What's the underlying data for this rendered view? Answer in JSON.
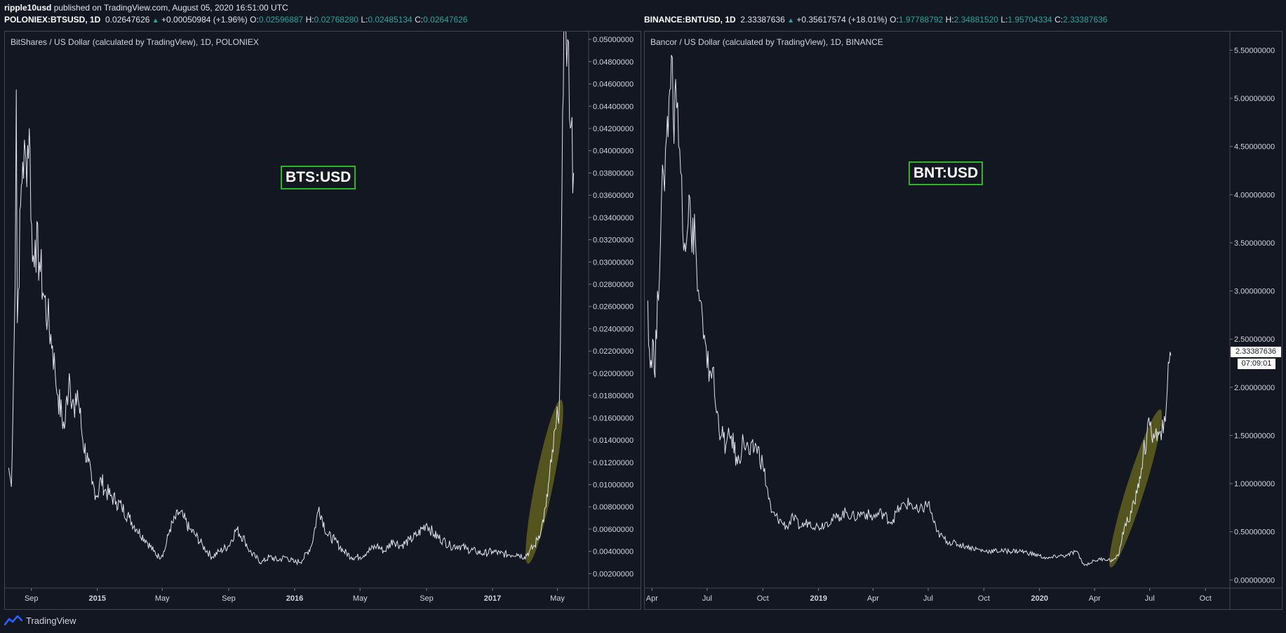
{
  "header": {
    "publisher": "ripple10usd",
    "published_text": "published on TradingView.com, August 05, 2020 16:51:00 UTC"
  },
  "left": {
    "symbol": "POLONIEX:BTSUSD, 1D",
    "last": "0.02647626",
    "change": "+0.00050984 (+1.96%)",
    "o": "0.02596887",
    "h": "0.02768280",
    "l": "0.02485134",
    "c": "0.02647626",
    "title": "BitShares / US Dollar (calculated by TradingView), 1D, POLONIEX",
    "annotation": "BTS:USD"
  },
  "right": {
    "symbol": "BINANCE:BNTUSD, 1D",
    "last": "2.33387636",
    "change": "+0.35617574 (+18.01%)",
    "o": "1.97788792",
    "h": "2.34881520",
    "l": "1.95704334",
    "c": "2.33387636",
    "title": "Bancor / US Dollar (calculated by TradingView), 1D, BINANCE",
    "annotation": "BNT:USD",
    "price_tag": "2.33387636",
    "countdown": "07:09:01"
  },
  "labels": {
    "o": "O:",
    "h": "H:",
    "l": "L:",
    "c": "C:"
  },
  "footer": {
    "brand": "TradingView"
  },
  "colors": {
    "background": "#131722",
    "line": "#e0e3eb",
    "highlight": "#6b6b1e",
    "annotation_border": "#2ab52a",
    "up": "#26a69a"
  },
  "chart_data": [
    {
      "type": "line",
      "title": "BitShares / US Dollar (calculated by TradingView), 1D, POLONIEX",
      "x_tick_labels": [
        "Sep",
        "2015",
        "May",
        "Sep",
        "2016",
        "May",
        "Sep",
        "2017",
        "May"
      ],
      "ylim": [
        0.0007,
        0.0507
      ],
      "y_tick_labels": [
        "0.05000000",
        "0.04800000",
        "0.04600000",
        "0.04400000",
        "0.04200000",
        "0.04000000",
        "0.03800000",
        "0.03600000",
        "0.03400000",
        "0.03200000",
        "0.03000000",
        "0.02800000",
        "0.02600000",
        "0.02400000",
        "0.02200000",
        "0.02000000",
        "0.01800000",
        "0.01600000",
        "0.01400000",
        "0.01200000",
        "0.01000000",
        "0.00800000",
        "0.00600000",
        "0.00400000",
        "0.00200000"
      ],
      "series": [
        {
          "x": [
            "2014-07-21",
            "2014-07-26",
            "2014-08-02",
            "2014-08-04",
            "2014-08-06",
            "2014-08-08",
            "2014-08-12",
            "2014-08-16",
            "2014-08-22",
            "2014-08-28",
            "2014-09-03",
            "2014-09-08",
            "2014-09-16",
            "2014-09-24",
            "2014-10-01",
            "2014-10-10",
            "2014-10-15",
            "2014-10-20",
            "2014-11-01",
            "2014-11-10",
            "2014-11-20",
            "2014-11-25",
            "2014-12-05",
            "2014-12-15",
            "2014-12-22",
            "2015-01-01",
            "2015-01-08",
            "2015-01-15",
            "2015-01-25",
            "2015-02-05",
            "2015-02-15",
            "2015-03-01",
            "2015-03-15",
            "2015-04-01",
            "2015-04-15",
            "2015-04-25",
            "2015-05-05",
            "2015-05-15",
            "2015-06-01",
            "2015-06-10",
            "2015-06-20",
            "2015-07-01",
            "2015-07-15",
            "2015-08-01",
            "2015-08-15",
            "2015-09-01",
            "2015-09-15",
            "2015-10-01",
            "2015-10-10",
            "2015-10-20",
            "2015-11-01",
            "2015-11-15",
            "2015-12-01",
            "2015-12-15",
            "2016-01-01",
            "2016-01-15",
            "2016-02-01",
            "2016-02-15",
            "2016-03-01",
            "2016-03-15",
            "2016-04-01",
            "2016-04-15",
            "2016-05-01",
            "2016-05-15",
            "2016-06-01",
            "2016-06-15",
            "2016-07-01",
            "2016-07-15",
            "2016-08-01",
            "2016-08-15",
            "2016-09-01",
            "2016-09-15",
            "2016-10-01",
            "2016-10-15",
            "2016-11-01",
            "2016-11-15",
            "2016-12-01",
            "2016-12-15",
            "2017-01-01",
            "2017-01-15",
            "2017-02-01",
            "2017-02-15",
            "2017-03-01",
            "2017-03-10",
            "2017-03-20",
            "2017-04-01",
            "2017-04-10",
            "2017-04-20",
            "2017-04-28",
            "2017-05-02",
            "2017-05-05",
            "2017-05-08",
            "2017-05-12",
            "2017-05-15",
            "2017-05-20",
            "2017-05-25",
            "2017-05-31"
          ],
          "values": [
            0.0115,
            0.0098,
            0.028,
            0.0455,
            0.0245,
            0.0275,
            0.035,
            0.039,
            0.039,
            0.042,
            0.03,
            0.032,
            0.03,
            0.027,
            0.025,
            0.0225,
            0.02,
            0.018,
            0.015,
            0.02,
            0.016,
            0.0185,
            0.014,
            0.012,
            0.01,
            0.009,
            0.0105,
            0.0095,
            0.009,
            0.0085,
            0.008,
            0.007,
            0.006,
            0.005,
            0.004,
            0.0035,
            0.004,
            0.006,
            0.0075,
            0.007,
            0.006,
            0.0055,
            0.0045,
            0.0035,
            0.004,
            0.0045,
            0.006,
            0.005,
            0.004,
            0.0035,
            0.003,
            0.0035,
            0.0032,
            0.0035,
            0.003,
            0.0032,
            0.0045,
            0.008,
            0.0055,
            0.005,
            0.004,
            0.0035,
            0.0035,
            0.004,
            0.0045,
            0.004,
            0.005,
            0.0045,
            0.005,
            0.0055,
            0.0065,
            0.0055,
            0.005,
            0.0045,
            0.0045,
            0.0042,
            0.004,
            0.0038,
            0.004,
            0.0038,
            0.0037,
            0.0038,
            0.0035,
            0.004,
            0.0045,
            0.006,
            0.008,
            0.012,
            0.015,
            0.016,
            0.018,
            0.03,
            0.045,
            0.055,
            0.05,
            0.042,
            0.038
          ]
        }
      ]
    },
    {
      "type": "line",
      "title": "Bancor / US Dollar (calculated by TradingView), 1D, BINANCE",
      "x_tick_labels": [
        "Apr",
        "Jul",
        "Oct",
        "2019",
        "Apr",
        "Jul",
        "Oct",
        "2020",
        "Apr",
        "Jul",
        "Oct"
      ],
      "ylim": [
        -0.085,
        5.693
      ],
      "y_tick_labels": [
        "5.50000000",
        "5.00000000",
        "4.50000000",
        "4.00000000",
        "3.50000000",
        "3.00000000",
        "2.50000000",
        "2.00000000",
        "1.50000000",
        "1.00000000",
        "0.50000000",
        "0.00000000"
      ],
      "series": [
        {
          "x": [
            "2018-03-25",
            "2018-03-29",
            "2018-04-02",
            "2018-04-06",
            "2018-04-10",
            "2018-04-15",
            "2018-04-20",
            "2018-04-25",
            "2018-04-29",
            "2018-05-03",
            "2018-05-06",
            "2018-05-10",
            "2018-05-15",
            "2018-05-20",
            "2018-05-25",
            "2018-06-01",
            "2018-06-06",
            "2018-06-10",
            "2018-06-15",
            "2018-06-20",
            "2018-06-25",
            "2018-07-01",
            "2018-07-10",
            "2018-07-15",
            "2018-07-25",
            "2018-08-01",
            "2018-08-10",
            "2018-08-20",
            "2018-08-30",
            "2018-09-10",
            "2018-09-20",
            "2018-10-01",
            "2018-10-15",
            "2018-11-01",
            "2018-11-10",
            "2018-11-20",
            "2018-12-01",
            "2018-12-15",
            "2019-01-01",
            "2019-01-15",
            "2019-02-01",
            "2019-02-15",
            "2019-03-01",
            "2019-03-15",
            "2019-04-01",
            "2019-04-15",
            "2019-05-01",
            "2019-05-15",
            "2019-06-01",
            "2019-06-15",
            "2019-07-01",
            "2019-07-15",
            "2019-08-01",
            "2019-09-01",
            "2019-10-01",
            "2019-11-01",
            "2019-12-01",
            "2020-01-01",
            "2020-01-15",
            "2020-02-01",
            "2020-02-15",
            "2020-03-01",
            "2020-03-15",
            "2020-04-01",
            "2020-04-15",
            "2020-05-01",
            "2020-05-10",
            "2020-05-20",
            "2020-06-01",
            "2020-06-10",
            "2020-06-20",
            "2020-07-01",
            "2020-07-10",
            "2020-07-20",
            "2020-07-25",
            "2020-07-30",
            "2020-08-05"
          ],
          "values": [
            2.9,
            2.2,
            2.5,
            2.1,
            3.0,
            3.5,
            4.2,
            4.6,
            5.0,
            5.45,
            4.8,
            5.2,
            4.5,
            4.2,
            3.5,
            4.0,
            3.4,
            3.8,
            3.0,
            2.9,
            2.5,
            2.2,
            2.2,
            1.8,
            1.5,
            1.4,
            1.5,
            1.2,
            1.45,
            1.3,
            1.4,
            1.2,
            0.7,
            0.6,
            0.55,
            0.65,
            0.55,
            0.6,
            0.55,
            0.6,
            0.65,
            0.7,
            0.65,
            0.7,
            0.65,
            0.7,
            0.6,
            0.75,
            0.8,
            0.7,
            0.8,
            0.5,
            0.4,
            0.35,
            0.3,
            0.3,
            0.3,
            0.25,
            0.22,
            0.25,
            0.25,
            0.3,
            0.15,
            0.2,
            0.22,
            0.2,
            0.25,
            0.55,
            0.7,
            0.9,
            1.3,
            1.6,
            1.5,
            1.45,
            1.7,
            2.0,
            2.33
          ]
        }
      ]
    }
  ]
}
